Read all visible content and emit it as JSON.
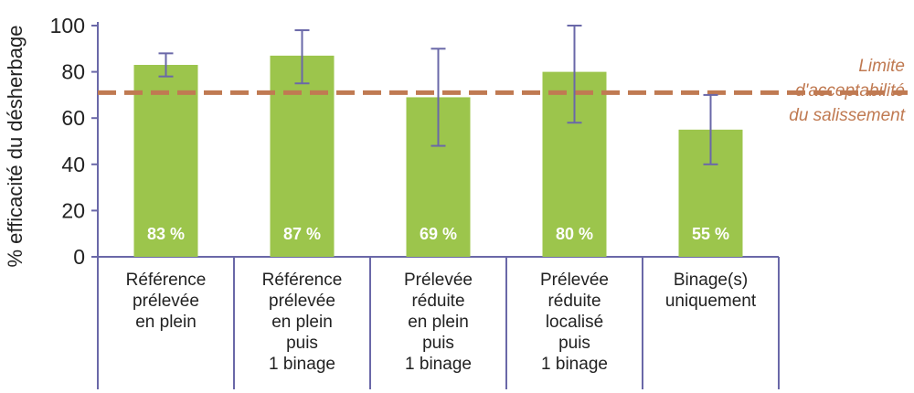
{
  "chart_data": {
    "type": "bar",
    "ylabel": "% efficacité du désherbage",
    "ylim": [
      0,
      100
    ],
    "yticks": [
      0,
      20,
      40,
      60,
      80,
      100
    ],
    "categories": [
      [
        "Référence",
        "prélevée",
        "en plein"
      ],
      [
        "Référence",
        "prélevée",
        "en plein",
        "puis",
        "1 binage"
      ],
      [
        "Prélevée",
        "réduite",
        "en plein",
        "puis",
        "1 binage"
      ],
      [
        "Prélevée",
        "réduite",
        "localisé",
        "puis",
        "1 binage"
      ],
      [
        "Binage(s)",
        "uniquement"
      ]
    ],
    "values": [
      83,
      87,
      69,
      80,
      55
    ],
    "data_labels": [
      "83 %",
      "87 %",
      "69 %",
      "80 %",
      "55 %"
    ],
    "error_bars": [
      [
        78,
        88
      ],
      [
        75,
        98
      ],
      [
        48,
        90
      ],
      [
        58,
        100
      ],
      [
        40,
        70
      ]
    ],
    "threshold": {
      "value": 71,
      "label_lines": [
        "Limite",
        "d'acceptabilité",
        "du salissement"
      ]
    },
    "colors": {
      "bar": "#9cc54c",
      "error_bar": "#6a68a8",
      "threshold": "#c07a52",
      "axis": "#6a68a8",
      "text": "#222222"
    }
  }
}
